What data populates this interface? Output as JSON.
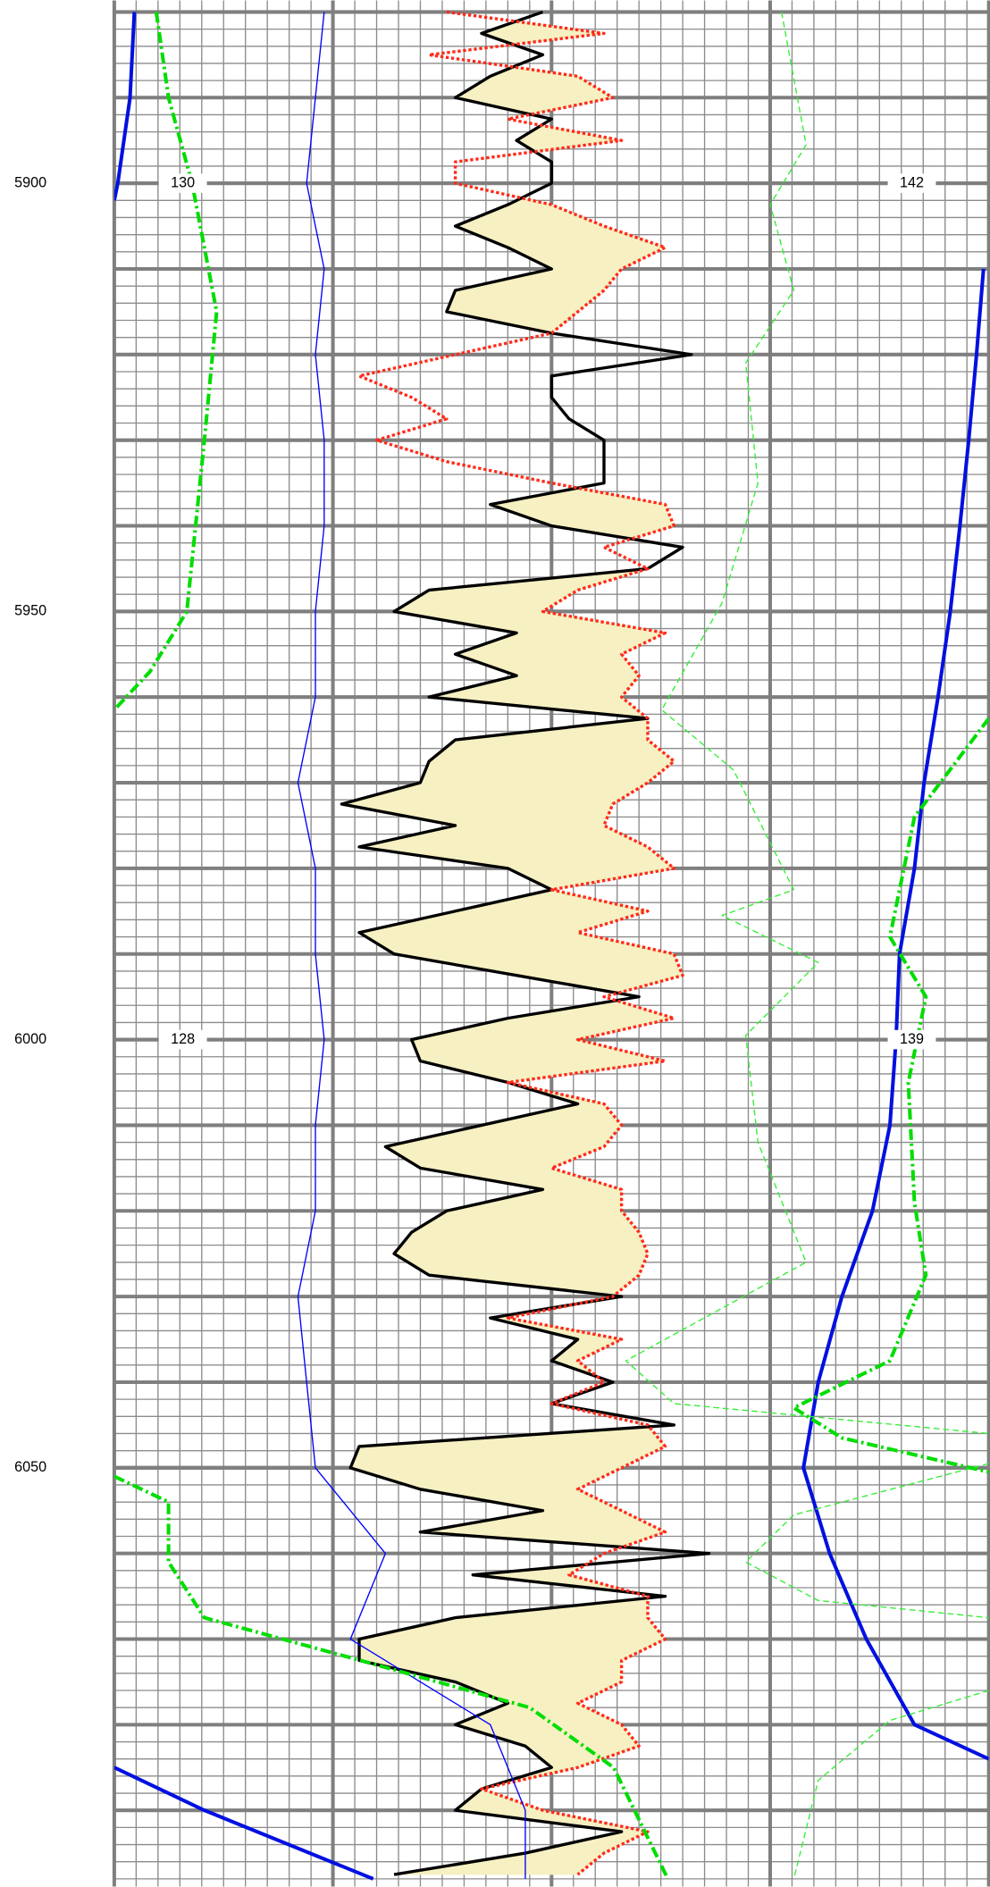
{
  "chart_data": {
    "type": "well-log",
    "ylim": [
      5878.65,
      6098.9
    ],
    "yticks": [
      5900,
      5950,
      6000,
      6050
    ],
    "ygrid": [
      5880,
      5890,
      5900,
      5910,
      5920,
      5930,
      5940,
      5950,
      5960,
      5970,
      5980,
      5990,
      6000,
      6010,
      6020,
      6030,
      6040,
      6050,
      6060,
      6070,
      6080,
      6090
    ],
    "ygrid_minor": [
      5880,
      5882,
      5884,
      5886,
      5888,
      5890,
      5892,
      5894,
      5896,
      5898,
      5900,
      5902,
      5904,
      5906,
      5908,
      5910,
      5912,
      5914,
      5916,
      5918,
      5920,
      5922,
      5924,
      5926,
      5928,
      5930,
      5932,
      5934,
      5936,
      5938,
      5940,
      5942,
      5944,
      5946,
      5948,
      5950,
      5952,
      5954,
      5956,
      5958,
      5960,
      5962,
      5964,
      5966,
      5968,
      5970,
      5972,
      5974,
      5976,
      5978,
      5980,
      5982,
      5984,
      5986,
      5988,
      5990,
      5992,
      5994,
      5996,
      5998,
      6000,
      6002,
      6004,
      6006,
      6008,
      6010,
      6012,
      6014,
      6016,
      6018,
      6020,
      6022,
      6024,
      6026,
      6028,
      6030,
      6032,
      6034,
      6036,
      6038,
      6040,
      6042,
      6044,
      6046,
      6048,
      6050,
      6052,
      6054,
      6056,
      6058,
      6060,
      6062,
      6064,
      6066,
      6068,
      6070,
      6072,
      6074,
      6076,
      6078,
      6080,
      6082,
      6084,
      6086,
      6088,
      6090,
      6092,
      6094,
      6096,
      6098
    ],
    "xlim": [
      0,
      100
    ],
    "xgrid": [
      0,
      25,
      50,
      75,
      100
    ],
    "xgrid_minor": [
      0,
      2.5,
      5,
      7.5,
      10,
      12.5,
      15,
      17.5,
      20,
      22.5,
      25,
      27.5,
      30,
      32.5,
      35,
      37.5,
      40,
      42.5,
      45,
      47.5,
      50,
      52.5,
      55,
      57.5,
      60,
      62.5,
      65,
      67.5,
      70,
      72.5,
      75,
      77.5,
      80,
      82.5,
      85,
      87.5,
      90,
      92.5,
      95,
      97.5,
      100
    ],
    "grid": true,
    "track_labels": [
      {
        "depth": 5900,
        "left": "130",
        "right": "142"
      },
      {
        "depth": 6000,
        "left": "128",
        "right": "139"
      }
    ],
    "fill_between": [
      0,
      1
    ],
    "fill_color": "#f6f0c2",
    "x": [
      5880,
      5882.5,
      5885,
      5887.5,
      5890,
      5892.5,
      5895,
      5897.5,
      5900,
      5902.5,
      5905,
      5907.5,
      5910,
      5912.5,
      5915,
      5917.5,
      5920,
      5922.5,
      5925,
      5927.5,
      5930,
      5932.5,
      5935,
      5937.5,
      5940,
      5942.5,
      5945,
      5947.5,
      5950,
      5952.5,
      5955,
      5957.5,
      5960,
      5962.5,
      5965,
      5967.5,
      5970,
      5972.5,
      5975,
      5977.5,
      5980,
      5982.5,
      5985,
      5987.5,
      5990,
      5992.5,
      5995,
      5997.5,
      6000,
      6002.5,
      6005,
      6007.5,
      6010,
      6012.5,
      6015,
      6017.5,
      6020,
      6022.5,
      6025,
      6027.5,
      6030,
      6032.5,
      6035,
      6037.5,
      6040,
      6042.5,
      6045,
      6047.5,
      6050,
      6052.5,
      6055,
      6057.5,
      6060,
      6062.5,
      6065,
      6067.5,
      6070,
      6072.5,
      6075,
      6077.5,
      6080,
      6082.5,
      6085,
      6087.5,
      6090,
      6092.5,
      6095,
      6097.5
    ],
    "series": [
      {
        "color": "#000000",
        "style": "solid",
        "width": 2.5,
        "values": [
          49,
          42,
          49,
          43,
          39,
          50,
          46,
          50,
          50,
          45,
          39,
          45,
          50,
          39,
          38,
          50,
          66,
          50,
          50,
          52,
          56,
          56,
          56,
          43,
          50,
          65,
          61,
          36,
          32,
          46,
          39,
          46,
          36,
          61,
          39,
          36,
          35,
          26,
          39,
          28,
          45,
          50,
          39,
          28,
          32,
          46,
          60,
          45,
          34,
          35,
          45,
          53,
          42,
          31,
          35,
          49,
          38,
          34,
          32,
          36,
          58,
          43,
          53,
          50,
          57,
          50,
          64,
          28,
          27,
          35,
          49,
          35,
          68,
          41,
          63,
          39,
          28,
          28,
          39,
          45,
          39,
          47,
          50,
          42,
          39,
          58,
          47,
          32
        ]
      },
      {
        "color": "#ff2a1a",
        "style": "dotted",
        "width": 2.5,
        "values": [
          38,
          56,
          36,
          53,
          57,
          45,
          58,
          39,
          39,
          50,
          56,
          63,
          58,
          56,
          53,
          50,
          39,
          28,
          34,
          38,
          30,
          38,
          50,
          63,
          64,
          56,
          61,
          53,
          49,
          63,
          58,
          60,
          58,
          61,
          61,
          64,
          61,
          57,
          56,
          61,
          64,
          50,
          61,
          53,
          64,
          65,
          56,
          64,
          53,
          63,
          45,
          56,
          58,
          56,
          50,
          58,
          58,
          60,
          61,
          60,
          57,
          45,
          58,
          53,
          56,
          50,
          61,
          63,
          58,
          53,
          58,
          63,
          56,
          52,
          61,
          61,
          63,
          58,
          58,
          53,
          58,
          60,
          53,
          42,
          49,
          61,
          56,
          53
        ]
      },
      {
        "color": "#0000ff",
        "style": "solid",
        "width": 1,
        "x": [
          5880,
          5890,
          5900,
          5910,
          5920,
          5930,
          5940,
          5950,
          5960,
          5970,
          5980,
          5990,
          6000,
          6010,
          6020,
          6030,
          6040,
          6050,
          6060,
          6070,
          6080,
          6090,
          6098
        ],
        "values": [
          24,
          23,
          22,
          24,
          23,
          24,
          24,
          23,
          23,
          21,
          23,
          23,
          24,
          23,
          23,
          21,
          22,
          23,
          31,
          27,
          43,
          47,
          47
        ]
      },
      {
        "color": "#0010e0",
        "style": "solid",
        "width": 3,
        "x": [
          5880,
          5890,
          5900,
          5902,
          5903,
          5910,
          5920,
          5930,
          5940,
          5950,
          5960,
          5970,
          5980,
          5990,
          6000,
          6010,
          6020,
          6030,
          6040,
          6050,
          6060,
          6070,
          6080,
          6084,
          6084.5,
          6085,
          6090,
          6098
        ],
        "values": [
          2.3,
          1.8,
          0.4,
          0,
          null,
          99.4,
          98.6,
          97.7,
          96.7,
          95.6,
          94.2,
          92.6,
          91.5,
          89.8,
          89.4,
          88.7,
          86.7,
          83.2,
          80.5,
          78.8,
          81.8,
          86,
          91.5,
          100,
          null,
          0,
          10.3,
          29.6
        ]
      },
      {
        "color": "#00dd00",
        "style": "dashdot",
        "width": 3,
        "x": [
          5880,
          5890,
          5900,
          5915,
          5930,
          5950,
          5957,
          5961.5,
          5962,
          5962.5,
          5974,
          5988,
          5995,
          6005,
          6019,
          6027.5,
          6037.5,
          6043,
          6046.5,
          6050.5,
          6050.75,
          6051,
          6054,
          6061,
          6067.5,
          6072.5,
          6078,
          6085,
          6098
        ],
        "values": [
          4.8,
          6.2,
          8.9,
          11.7,
          10.3,
          8.3,
          4.1,
          0,
          null,
          100,
          91.5,
          88.7,
          92.8,
          90.8,
          91.5,
          92.8,
          88.7,
          77.7,
          83.2,
          100,
          null,
          0,
          6.2,
          6.2,
          10.3,
          28.2,
          47.5,
          57.1,
          63.3
        ]
      },
      {
        "color": "#33ee33",
        "style": "dashed",
        "width": 1,
        "x": [
          5880,
          5895.5,
          5902.5,
          5912.5,
          5921,
          5935,
          5949,
          5961.5,
          5968.5,
          5982.5,
          5985.5,
          5991,
          5999.5,
          6012,
          6026,
          6037.5,
          6042.5,
          6046,
          6046.5,
          6049.5,
          6055.5,
          6061,
          6065.5,
          6067.5,
          6070,
          6076,
          6079.5,
          6086.5,
          6098
        ],
        "values": [
          76.3,
          79.1,
          75,
          77.7,
          72.2,
          73.6,
          69.5,
          62.6,
          70.8,
          77.7,
          69.5,
          80.5,
          72.2,
          73.6,
          79.1,
          58.5,
          64,
          100,
          null,
          100,
          77.7,
          72.2,
          80.5,
          100,
          null,
          100,
          88.7,
          80.5,
          77.7
        ]
      }
    ]
  }
}
